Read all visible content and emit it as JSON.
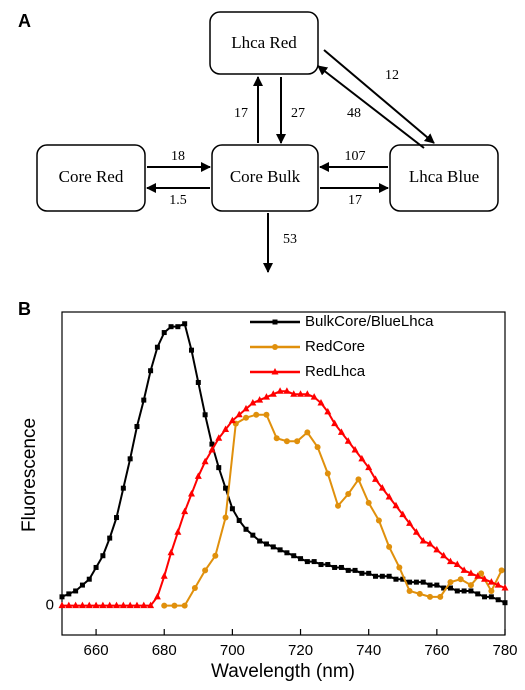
{
  "diagram": {
    "label": "A",
    "nodes": [
      {
        "label": "Lhca Red"
      },
      {
        "label": "Core Red"
      },
      {
        "label": "Core Bulk"
      },
      {
        "label": "Lhca Blue"
      }
    ],
    "edges": [
      {
        "from": "Core Red",
        "to": "Core Bulk",
        "label": "18"
      },
      {
        "from": "Core Bulk",
        "to": "Core Red",
        "label": "1.5"
      },
      {
        "from": "Lhca Blue",
        "to": "Core Bulk",
        "label": "107"
      },
      {
        "from": "Core Bulk",
        "to": "Lhca Blue",
        "label": "17"
      },
      {
        "from": "Core Bulk",
        "to": "Lhca Red",
        "label": "17"
      },
      {
        "from": "Lhca Red",
        "to": "Core Bulk",
        "label": "27"
      },
      {
        "from": "Lhca Red",
        "to": "Lhca Blue",
        "label": "12"
      },
      {
        "from": "Lhca Blue",
        "to": "Lhca Red",
        "label": "48"
      },
      {
        "from": "Core Bulk",
        "to": null,
        "label": "53"
      }
    ]
  },
  "chart_data": {
    "type": "line",
    "label": "B",
    "x_label": "Wavelength (nm)",
    "y_label": "Fluorescence",
    "xlim": [
      650,
      780
    ],
    "xticks": [
      660,
      680,
      700,
      720,
      740,
      760,
      780
    ],
    "ylim": [
      -0.1,
      1.0
    ],
    "yticks": [
      0
    ],
    "legend": "top-right",
    "series": [
      {
        "name": "BulkCore/BlueLhca",
        "color": "#000000",
        "marker": "square",
        "x": [
          650,
          652,
          654,
          656,
          658,
          660,
          662,
          664,
          666,
          668,
          670,
          672,
          674,
          676,
          678,
          680,
          682,
          684,
          686,
          688,
          690,
          692,
          694,
          696,
          698,
          700,
          702,
          704,
          706,
          708,
          710,
          712,
          714,
          716,
          718,
          720,
          722,
          724,
          726,
          728,
          730,
          732,
          734,
          736,
          738,
          740,
          742,
          744,
          746,
          748,
          750,
          752,
          754,
          756,
          758,
          760,
          762,
          764,
          766,
          768,
          770,
          772,
          774,
          776,
          778,
          780
        ],
        "values": [
          0.03,
          0.04,
          0.05,
          0.07,
          0.09,
          0.13,
          0.17,
          0.23,
          0.3,
          0.4,
          0.5,
          0.61,
          0.7,
          0.8,
          0.88,
          0.93,
          0.95,
          0.95,
          0.96,
          0.87,
          0.76,
          0.65,
          0.55,
          0.47,
          0.4,
          0.33,
          0.29,
          0.26,
          0.24,
          0.22,
          0.21,
          0.2,
          0.19,
          0.18,
          0.17,
          0.16,
          0.15,
          0.15,
          0.14,
          0.14,
          0.13,
          0.13,
          0.12,
          0.12,
          0.11,
          0.11,
          0.1,
          0.1,
          0.1,
          0.09,
          0.09,
          0.08,
          0.08,
          0.08,
          0.07,
          0.07,
          0.06,
          0.06,
          0.05,
          0.05,
          0.05,
          0.04,
          0.03,
          0.03,
          0.02,
          0.01
        ]
      },
      {
        "name": "RedCore",
        "color": "#e0900c",
        "marker": "circle",
        "x": [
          680,
          683,
          686,
          689,
          692,
          695,
          698,
          701,
          704,
          707,
          710,
          713,
          716,
          719,
          722,
          725,
          728,
          731,
          734,
          737,
          740,
          743,
          746,
          749,
          752,
          755,
          758,
          761,
          764,
          767,
          770,
          773,
          776,
          779
        ],
        "values": [
          0,
          0,
          0,
          0.06,
          0.12,
          0.17,
          0.3,
          0.62,
          0.64,
          0.65,
          0.65,
          0.57,
          0.56,
          0.56,
          0.59,
          0.54,
          0.45,
          0.34,
          0.38,
          0.43,
          0.35,
          0.29,
          0.2,
          0.13,
          0.05,
          0.04,
          0.03,
          0.03,
          0.08,
          0.09,
          0.07,
          0.11,
          0.05,
          0.12
        ]
      },
      {
        "name": "RedLhca",
        "color": "#ff0000",
        "marker": "triangle",
        "x": [
          650,
          652,
          654,
          656,
          658,
          660,
          662,
          664,
          666,
          668,
          670,
          672,
          674,
          676,
          678,
          680,
          682,
          684,
          686,
          688,
          690,
          692,
          694,
          696,
          698,
          700,
          702,
          704,
          706,
          708,
          710,
          712,
          714,
          716,
          718,
          720,
          722,
          724,
          726,
          728,
          730,
          732,
          734,
          736,
          738,
          740,
          742,
          744,
          746,
          748,
          750,
          752,
          754,
          756,
          758,
          760,
          762,
          764,
          766,
          768,
          770,
          772,
          774,
          776,
          778,
          780
        ],
        "values": [
          0,
          0,
          0,
          0,
          0,
          0,
          0,
          0,
          0,
          0,
          0,
          0,
          0,
          0,
          0.03,
          0.1,
          0.18,
          0.25,
          0.32,
          0.38,
          0.44,
          0.49,
          0.53,
          0.57,
          0.6,
          0.63,
          0.65,
          0.67,
          0.69,
          0.7,
          0.71,
          0.72,
          0.73,
          0.73,
          0.72,
          0.72,
          0.72,
          0.71,
          0.69,
          0.66,
          0.62,
          0.59,
          0.56,
          0.53,
          0.5,
          0.47,
          0.43,
          0.4,
          0.37,
          0.34,
          0.31,
          0.28,
          0.25,
          0.22,
          0.21,
          0.19,
          0.17,
          0.15,
          0.14,
          0.12,
          0.11,
          0.1,
          0.09,
          0.08,
          0.07,
          0.06
        ]
      }
    ]
  }
}
